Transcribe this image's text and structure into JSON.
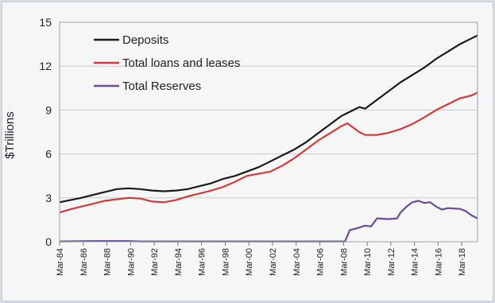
{
  "chart_data": {
    "type": "line",
    "title": "",
    "xlabel": "",
    "ylabel": "$Trillions",
    "ylim": [
      0,
      15
    ],
    "y_ticks": [
      0,
      3,
      6,
      9,
      12,
      15
    ],
    "x_tick_labels": [
      "Mar-84",
      "Mar-86",
      "Mar-88",
      "Mar-90",
      "Mar-92",
      "Mar-94",
      "Mar-96",
      "Mar-98",
      "Mar-00",
      "Mar-02",
      "Mar-04",
      "Mar-06",
      "Mar-08",
      "Mar-10",
      "Mar-12",
      "Mar-14",
      "Mar-16",
      "Mar-18"
    ],
    "x_range": [
      1984.17,
      2019.5
    ],
    "grid": "horizontal",
    "legend_position": "top-left",
    "series": [
      {
        "name": "Deposits",
        "color": "#1a1a1a",
        "points": [
          [
            1984.17,
            2.7
          ],
          [
            1986,
            3.0
          ],
          [
            1988,
            3.4
          ],
          [
            1989,
            3.6
          ],
          [
            1990,
            3.65
          ],
          [
            1991,
            3.6
          ],
          [
            1992,
            3.5
          ],
          [
            1993,
            3.45
          ],
          [
            1994,
            3.5
          ],
          [
            1995,
            3.6
          ],
          [
            1996,
            3.8
          ],
          [
            1997,
            4.0
          ],
          [
            1998,
            4.3
          ],
          [
            1999,
            4.5
          ],
          [
            2000,
            4.8
          ],
          [
            2001,
            5.1
          ],
          [
            2002,
            5.5
          ],
          [
            2003,
            5.9
          ],
          [
            2004,
            6.3
          ],
          [
            2005,
            6.8
          ],
          [
            2006,
            7.4
          ],
          [
            2007,
            8.0
          ],
          [
            2008,
            8.6
          ],
          [
            2008.5,
            8.8
          ],
          [
            2009,
            9.0
          ],
          [
            2009.5,
            9.2
          ],
          [
            2010,
            9.1
          ],
          [
            2011,
            9.7
          ],
          [
            2012,
            10.3
          ],
          [
            2013,
            10.9
          ],
          [
            2014,
            11.4
          ],
          [
            2015,
            11.9
          ],
          [
            2016,
            12.5
          ],
          [
            2017,
            13.0
          ],
          [
            2018,
            13.5
          ],
          [
            2019,
            13.9
          ],
          [
            2019.5,
            14.1
          ]
        ]
      },
      {
        "name": "Total loans and leases",
        "color": "#d23b3b",
        "points": [
          [
            1984.17,
            2.0
          ],
          [
            1985,
            2.2
          ],
          [
            1986,
            2.4
          ],
          [
            1987,
            2.6
          ],
          [
            1988,
            2.8
          ],
          [
            1989,
            2.9
          ],
          [
            1990,
            3.0
          ],
          [
            1991,
            2.95
          ],
          [
            1992,
            2.75
          ],
          [
            1993,
            2.7
          ],
          [
            1994,
            2.85
          ],
          [
            1995,
            3.1
          ],
          [
            1996,
            3.3
          ],
          [
            1997,
            3.5
          ],
          [
            1998,
            3.75
          ],
          [
            1999,
            4.1
          ],
          [
            2000,
            4.5
          ],
          [
            2001,
            4.65
          ],
          [
            2002,
            4.8
          ],
          [
            2003,
            5.2
          ],
          [
            2004,
            5.7
          ],
          [
            2005,
            6.3
          ],
          [
            2006,
            6.9
          ],
          [
            2007,
            7.4
          ],
          [
            2008,
            7.9
          ],
          [
            2008.5,
            8.1
          ],
          [
            2009,
            7.8
          ],
          [
            2009.5,
            7.5
          ],
          [
            2010,
            7.3
          ],
          [
            2011,
            7.3
          ],
          [
            2012,
            7.45
          ],
          [
            2013,
            7.7
          ],
          [
            2014,
            8.05
          ],
          [
            2015,
            8.5
          ],
          [
            2016,
            9.0
          ],
          [
            2017,
            9.4
          ],
          [
            2018,
            9.8
          ],
          [
            2019,
            10.0
          ],
          [
            2019.5,
            10.2
          ]
        ]
      },
      {
        "name": "Total Reserves",
        "color": "#6a4c9c",
        "points": [
          [
            1984.17,
            0.02
          ],
          [
            1987,
            0.05
          ],
          [
            1990,
            0.05
          ],
          [
            1991,
            0.02
          ],
          [
            2007,
            0.02
          ],
          [
            2008.3,
            0.02
          ],
          [
            2008.7,
            0.8
          ],
          [
            2009.2,
            0.9
          ],
          [
            2010,
            1.1
          ],
          [
            2010.5,
            1.05
          ],
          [
            2011,
            1.6
          ],
          [
            2012,
            1.55
          ],
          [
            2012.7,
            1.6
          ],
          [
            2013,
            2.0
          ],
          [
            2013.5,
            2.4
          ],
          [
            2014,
            2.7
          ],
          [
            2014.5,
            2.8
          ],
          [
            2015,
            2.65
          ],
          [
            2015.5,
            2.7
          ],
          [
            2016,
            2.4
          ],
          [
            2016.5,
            2.2
          ],
          [
            2017,
            2.3
          ],
          [
            2018,
            2.25
          ],
          [
            2018.5,
            2.1
          ],
          [
            2019,
            1.8
          ],
          [
            2019.5,
            1.6
          ]
        ]
      }
    ]
  }
}
